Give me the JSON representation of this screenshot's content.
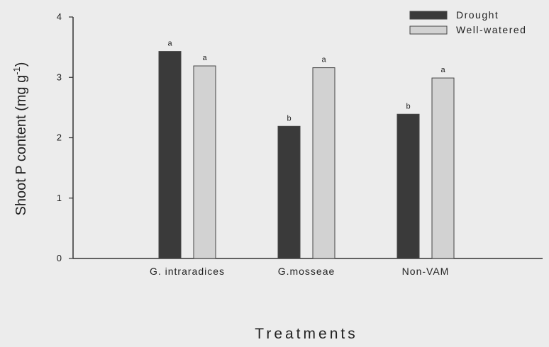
{
  "chart_data": {
    "type": "bar",
    "title": "",
    "xlabel": "Treatments",
    "ylabel": "Shoot P content (mg g",
    "ylabel_sup": "-1",
    "ylabel_end": ")",
    "ylim": [
      0,
      4
    ],
    "yticks": [
      "0",
      "1",
      "2",
      "3",
      "4"
    ],
    "categories": [
      "G. intraradices",
      "G.mosseae",
      "Non-VAM"
    ],
    "series": [
      {
        "name": "Drought",
        "color": "#3a3a3a",
        "values": [
          3.43,
          2.19,
          2.39
        ],
        "labels": [
          "a",
          "b",
          "b"
        ]
      },
      {
        "name": "Well-watered",
        "color": "#d2d2d2",
        "values": [
          3.19,
          3.16,
          2.99
        ],
        "labels": [
          "a",
          "a",
          "a"
        ]
      }
    ],
    "legend_position": "top-right",
    "grid": false
  }
}
